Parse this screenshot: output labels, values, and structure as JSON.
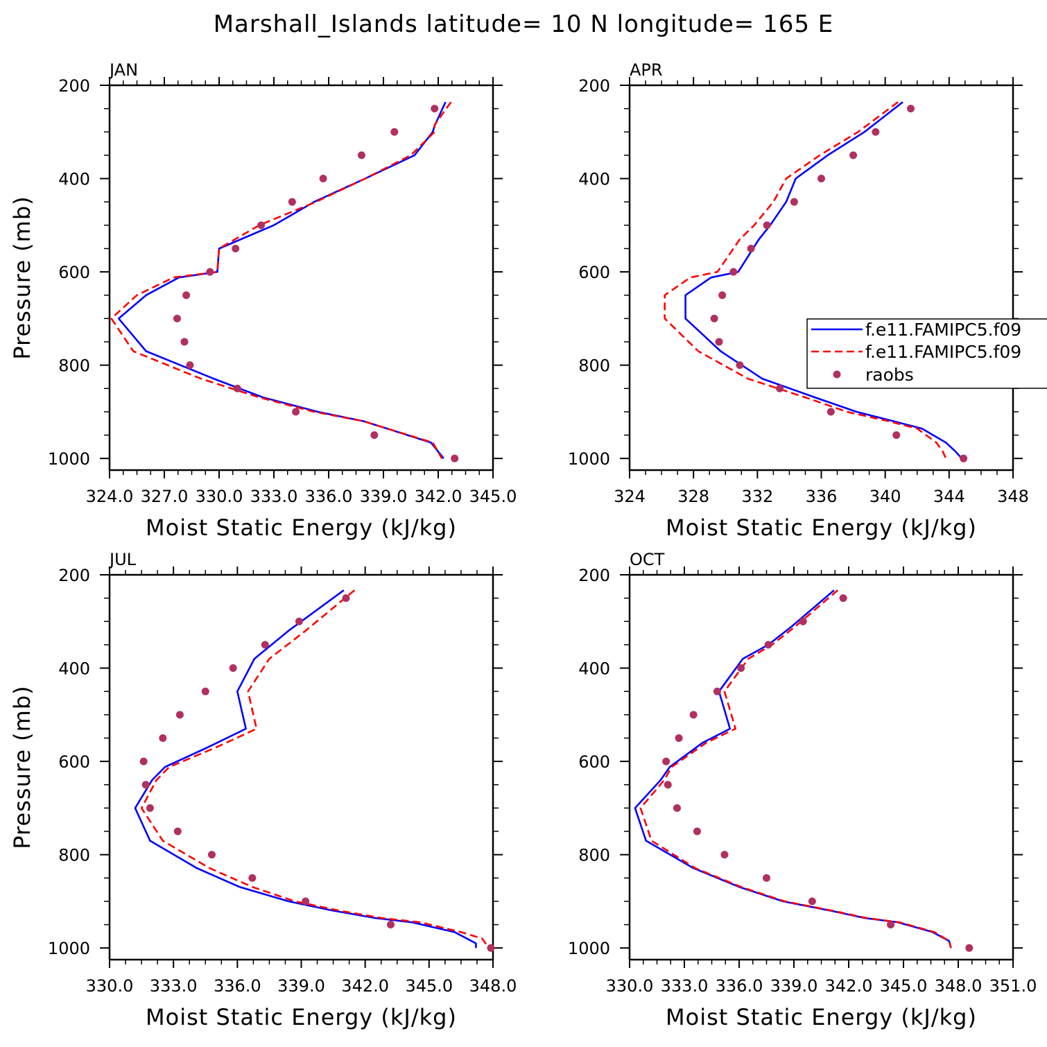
{
  "title": "Marshall_Islands  latitude= 10 N longitude= 165 E",
  "colors": {
    "model1": "#0000ff",
    "model2": "#ff0000",
    "raobs": "#b03060"
  },
  "legend": {
    "placement": "right, middle of APR panel",
    "entries": [
      "f.e11.FAMIPC5.f09",
      "f.e11.FAMIPC5.f09",
      "raobs"
    ]
  },
  "chart_data": [
    {
      "type": "line",
      "title": "JAN",
      "xlabel": "Moist Static Energy (kJ/kg)",
      "ylabel": "Pressure (mb)",
      "xlim": [
        324,
        345
      ],
      "xticks": [
        324,
        327,
        330,
        333,
        336,
        339,
        342,
        345
      ],
      "xtick_labels": [
        "324.0",
        "327.0",
        "330.0",
        "333.0",
        "336.0",
        "339.0",
        "342.0",
        "345.0"
      ],
      "ylim": [
        1025,
        200
      ],
      "yticks": [
        200,
        400,
        600,
        800,
        1000
      ],
      "yticks_inverted": true,
      "series": [
        {
          "name": "f.e11.FAMIPC5.f09",
          "style": "solid",
          "color": "#0000ff",
          "x": [
            342.4,
            341.8,
            341.7,
            340.7,
            338.0,
            335.2,
            333.0,
            330.0,
            329.9,
            327.8,
            326.0,
            324.5,
            326.0,
            329.7,
            332.4,
            335.4,
            337.9,
            339.2,
            341.6,
            342.3
          ],
          "y": [
            236,
            287,
            300,
            350,
            400,
            450,
            500,
            550,
            600,
            612,
            650,
            700,
            770,
            829,
            869,
            900,
            920,
            936,
            966,
            1000
          ]
        },
        {
          "name": "f.e11.FAMIPC5.f09",
          "style": "dashed",
          "color": "#ff0000",
          "x": [
            342.7,
            341.8,
            341.8,
            340.5,
            338.0,
            335.3,
            332.2,
            330.0,
            329.9,
            327.5,
            325.5,
            324.1,
            325.3,
            329.0,
            332.2,
            335.2,
            337.9,
            339.2,
            341.7,
            342.2
          ],
          "y": [
            236,
            285,
            300,
            350,
            400,
            450,
            500,
            550,
            600,
            612,
            650,
            700,
            770,
            829,
            869,
            900,
            920,
            936,
            966,
            1000
          ]
        }
      ],
      "points": {
        "name": "raobs",
        "color": "#b03060",
        "x": [
          341.8,
          339.6,
          337.8,
          335.7,
          334.0,
          332.3,
          330.9,
          329.5,
          328.2,
          327.7,
          328.1,
          328.4,
          331.0,
          334.2,
          338.5,
          342.9
        ],
        "y": [
          250,
          300,
          350,
          400,
          450,
          500,
          550,
          600,
          650,
          700,
          750,
          800,
          850,
          900,
          950,
          1000
        ]
      }
    },
    {
      "type": "line",
      "title": "APR",
      "xlabel": "Moist Static Energy (kJ/kg)",
      "ylabel": "",
      "xlim": [
        324,
        348
      ],
      "xticks": [
        324,
        328,
        332,
        336,
        340,
        344,
        348
      ],
      "xtick_labels": [
        "324",
        "328",
        "332",
        "336",
        "340",
        "344",
        "348"
      ],
      "ylim": [
        1025,
        200
      ],
      "yticks": [
        200,
        400,
        600,
        800,
        1000
      ],
      "yticks_inverted": true,
      "series": [
        {
          "name": "f.e11.FAMIPC5.f09",
          "style": "solid",
          "color": "#0000ff",
          "x": [
            341.1,
            338.7,
            336.4,
            334.4,
            333.8,
            332.8,
            332.1,
            330.8,
            329.1,
            327.5,
            327.5,
            329.7,
            332.3,
            335.6,
            338.2,
            340.5,
            342.3,
            343.8,
            344.4,
            344.8
          ],
          "y": [
            236,
            300,
            350,
            400,
            450,
            500,
            530,
            600,
            612,
            650,
            700,
            770,
            829,
            869,
            900,
            920,
            936,
            966,
            985,
            1000
          ]
        },
        {
          "name": "f.e11.FAMIPC5.f09",
          "style": "dashed",
          "color": "#ff0000",
          "x": [
            340.8,
            338.3,
            335.9,
            333.8,
            333.0,
            331.8,
            330.9,
            329.5,
            327.8,
            326.2,
            326.2,
            328.3,
            331.4,
            335.0,
            337.6,
            340.2,
            342.0,
            343.2,
            343.6,
            343.8
          ],
          "y": [
            236,
            300,
            350,
            400,
            450,
            500,
            530,
            600,
            612,
            650,
            700,
            770,
            829,
            869,
            900,
            920,
            936,
            966,
            985,
            1000
          ]
        }
      ],
      "points": {
        "name": "raobs",
        "color": "#b03060",
        "x": [
          341.6,
          339.4,
          338.0,
          336.0,
          334.3,
          332.6,
          331.6,
          330.5,
          329.8,
          329.3,
          329.6,
          330.9,
          333.4,
          336.6,
          340.7,
          344.9
        ],
        "y": [
          250,
          300,
          350,
          400,
          450,
          500,
          550,
          600,
          650,
          700,
          750,
          800,
          850,
          900,
          950,
          1000
        ]
      }
    },
    {
      "type": "line",
      "title": "JUL",
      "xlabel": "Moist Static Energy (kJ/kg)",
      "ylabel": "Pressure (mb)",
      "xlim": [
        330,
        348
      ],
      "xticks": [
        330,
        333,
        336,
        339,
        342,
        345,
        348
      ],
      "xtick_labels": [
        "330.0",
        "333.0",
        "336.0",
        "339.0",
        "342.0",
        "345.0",
        "348.0"
      ],
      "ylim": [
        1025,
        200
      ],
      "yticks": [
        200,
        400,
        600,
        800,
        1000
      ],
      "yticks_inverted": true,
      "series": [
        {
          "name": "f.e11.FAMIPC5.f09",
          "style": "solid",
          "color": "#0000ff",
          "x": [
            341.0,
            338.4,
            336.8,
            336.0,
            336.4,
            334.6,
            332.6,
            332.0,
            331.2,
            331.9,
            334.1,
            336.1,
            338.4,
            340.5,
            342.5,
            344.2,
            346.2,
            347.2,
            347.2
          ],
          "y": [
            233,
            320,
            380,
            450,
            530,
            570,
            612,
            640,
            700,
            770,
            829,
            869,
            900,
            920,
            936,
            945,
            966,
            990,
            1000
          ]
        },
        {
          "name": "f.e11.FAMIPC5.f09",
          "style": "dashed",
          "color": "#ff0000",
          "x": [
            341.5,
            339.2,
            337.5,
            336.5,
            336.9,
            335.0,
            332.8,
            332.2,
            331.5,
            332.5,
            334.7,
            336.7,
            338.7,
            340.8,
            342.8,
            344.6,
            346.5,
            347.5,
            347.8
          ],
          "y": [
            233,
            320,
            380,
            450,
            530,
            570,
            612,
            640,
            700,
            770,
            829,
            869,
            900,
            920,
            936,
            945,
            966,
            980,
            1000
          ]
        }
      ],
      "points": {
        "name": "raobs",
        "color": "#b03060",
        "x": [
          341.1,
          338.9,
          337.3,
          335.8,
          334.5,
          333.3,
          332.5,
          331.6,
          331.7,
          331.9,
          333.2,
          334.8,
          336.7,
          339.2,
          343.2,
          347.9
        ],
        "y": [
          250,
          300,
          350,
          400,
          450,
          500,
          550,
          600,
          650,
          700,
          750,
          800,
          850,
          900,
          950,
          1000
        ]
      }
    },
    {
      "type": "line",
      "title": "OCT",
      "xlabel": "Moist Static Energy (kJ/kg)",
      "ylabel": "",
      "xlim": [
        330,
        351
      ],
      "xticks": [
        330,
        333,
        336,
        339,
        342,
        345,
        348,
        351
      ],
      "xtick_labels": [
        "330.0",
        "333.0",
        "336.0",
        "339.0",
        "342.0",
        "345.0",
        "348.0",
        "351.0"
      ],
      "ylim": [
        1025,
        200
      ],
      "yticks": [
        200,
        400,
        600,
        800,
        1000
      ],
      "yticks_inverted": true,
      "series": [
        {
          "name": "f.e11.FAMIPC5.f09",
          "style": "solid",
          "color": "#0000ff",
          "x": [
            341.2,
            338.9,
            337.6,
            336.2,
            334.9,
            335.5,
            334.0,
            332.2,
            331.7,
            330.3,
            330.9,
            333.5,
            336.0,
            338.4,
            341.0,
            342.9,
            344.7,
            346.6,
            347.5,
            347.6
          ],
          "y": [
            233,
            310,
            350,
            380,
            450,
            530,
            560,
            612,
            640,
            700,
            770,
            829,
            869,
            900,
            920,
            936,
            945,
            966,
            985,
            1000
          ]
        },
        {
          "name": "f.e11.FAMIPC5.f09",
          "style": "dashed",
          "color": "#ff0000",
          "x": [
            341.4,
            339.1,
            337.8,
            336.5,
            335.2,
            335.8,
            334.2,
            332.3,
            331.9,
            330.6,
            331.2,
            333.6,
            336.1,
            338.5,
            341.1,
            343.0,
            344.8,
            346.7,
            347.5,
            347.6
          ],
          "y": [
            233,
            310,
            350,
            380,
            450,
            530,
            560,
            612,
            640,
            700,
            770,
            829,
            869,
            900,
            920,
            936,
            945,
            966,
            985,
            1000
          ]
        }
      ],
      "points": {
        "name": "raobs",
        "color": "#b03060",
        "x": [
          341.7,
          339.5,
          337.6,
          336.1,
          334.8,
          333.5,
          332.7,
          332.0,
          332.1,
          332.6,
          333.7,
          335.2,
          337.5,
          340.0,
          344.3,
          348.6
        ],
        "y": [
          250,
          300,
          350,
          400,
          450,
          500,
          550,
          600,
          650,
          700,
          750,
          800,
          850,
          900,
          950,
          1000
        ]
      }
    }
  ]
}
